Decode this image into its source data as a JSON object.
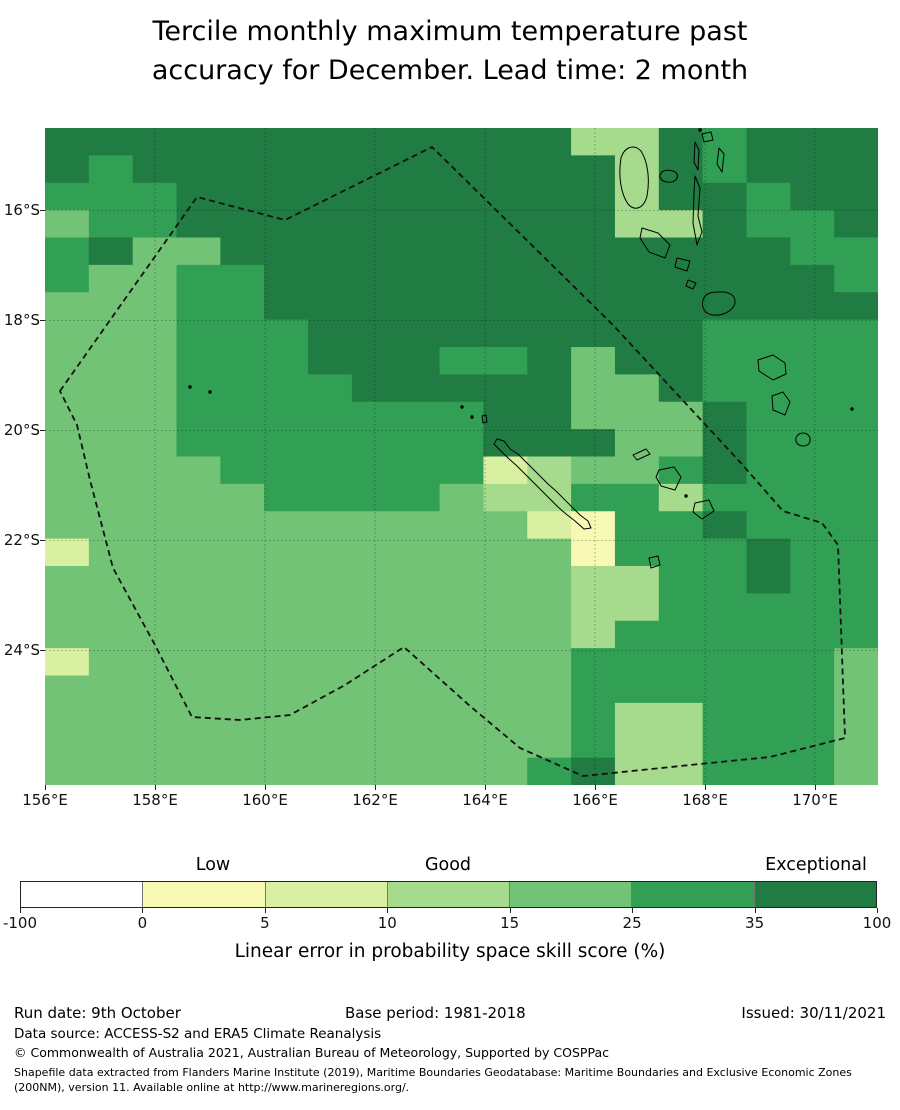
{
  "title": {
    "line1": "Tercile monthly maximum temperature past",
    "line2": "accuracy for December. Lead time: 2 month"
  },
  "map": {
    "lat_tick_labels": [
      "16°S",
      "18°S",
      "20°S",
      "22°S",
      "24°S"
    ],
    "lon_tick_labels": [
      "156°E",
      "158°E",
      "160°E",
      "162°E",
      "164°E",
      "166°E",
      "168°E",
      "170°E"
    ]
  },
  "chart_data": {
    "type": "heatmap",
    "title": "Tercile monthly maximum temperature past accuracy for December. Lead time: 2 month",
    "xlabel_ticks_deg_east": [
      156,
      158,
      160,
      162,
      164,
      166,
      168,
      170
    ],
    "ylabel_ticks_deg_south": [
      16,
      18,
      20,
      22,
      24
    ],
    "lon_range_deg_east": [
      156,
      171.2
    ],
    "lat_range_deg_south": [
      14.5,
      26.5
    ],
    "grid_on": true,
    "colorbar": {
      "label": "Linear error in probability space skill score (%)",
      "tick_labels": [
        "-100",
        "0",
        "5",
        "10",
        "15",
        "25",
        "35",
        "100"
      ],
      "tick_values": [
        -100,
        0,
        5,
        10,
        15,
        25,
        35,
        100
      ],
      "category_labels": [
        "Low",
        "Good",
        "Exceptional"
      ],
      "bin_colors": [
        "#ffffff",
        "#f6f8b4",
        "#d9efa1",
        "#a6da8c",
        "#72c375",
        "#31a054",
        "#207c42"
      ],
      "bin_ranges_percent": [
        "-100–0",
        "0–5",
        "5–10",
        "10–15",
        "15–25",
        "25–35",
        "35–100"
      ]
    },
    "grid_shape": {
      "cols": 19,
      "rows": 24
    },
    "bin_digit_meaning": "each digit indexes bin_colors: 0:<0%, 1:0-5%, 2:5-10%, 3:10-15%, 4:15-25%, 5:25-35%, 6:35-100%",
    "grid_bins_rows_north_to_south": [
      "6666666666663365666",
      "6566666666666365666",
      "5556666666666366566",
      "4556666666666336556",
      "5644666666666666655",
      "5445566666666666665",
      "4445566666666666666",
      "4445556666666665555",
      "4445556665564665555",
      "4445555666664465555",
      "4445555555664446555",
      "4445555555666446555",
      "4444555555234456555",
      "4444455554335535555",
      "4444444444421556555",
      "2444444444441555655",
      "4444444444443355655",
      "4444444444443355555",
      "4444444444443555555",
      "2444444444445555554",
      "4444444444445555554",
      "4444444444445335554",
      "4444444444445335554",
      "4444444444456335554"
    ]
  },
  "footer": {
    "run_date": "Run date: 9th October",
    "base_period": "Base period: 1981-2018",
    "issued": "Issued: 30/11/2021",
    "data_source": "Data source: ACCESS-S2 and ERA5 Climate Reanalysis",
    "copyright": "© Commonwealth of Australia 2021, Australian Bureau of Meteorology, Supported by COSPPac",
    "shapefile_note": "Shapefile data extracted from Flanders Marine Institute (2019), Maritime Boundaries Geodatabase: Maritime Boundaries and Exclusive Economic Zones (200NM), version 11. Available online at http://www.marineregions.org/."
  }
}
